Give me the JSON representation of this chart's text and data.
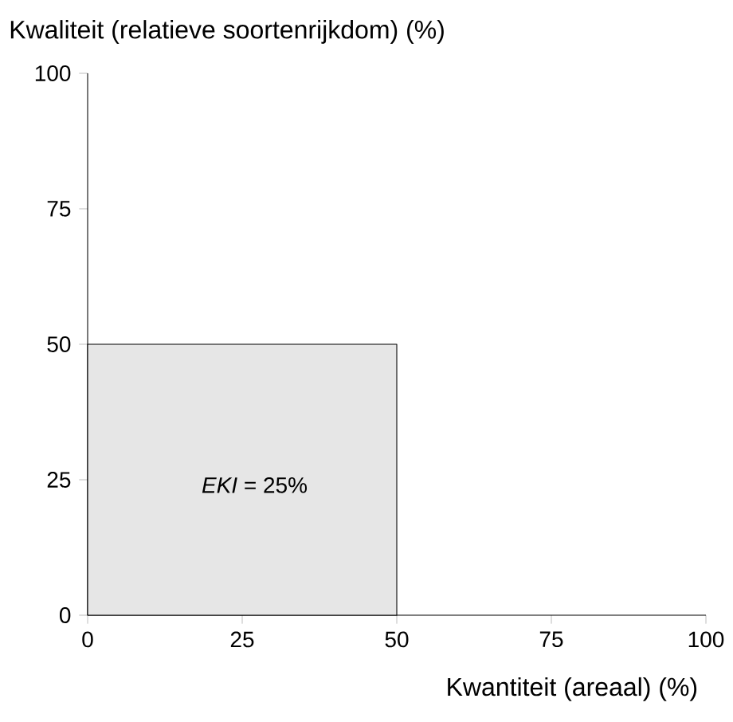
{
  "chart_data": {
    "type": "area",
    "xlabel": "Kwantiteit (areaal) (%)",
    "ylabel": "Kwaliteit (relatieve soortenrijkdom) (%)",
    "x": [
      0,
      50
    ],
    "values": [
      50,
      50
    ],
    "color": "#e6e6e6",
    "xlim": [
      0,
      100
    ],
    "ylim": [
      0,
      100
    ],
    "xticks": [
      0,
      25,
      50,
      75,
      100
    ],
    "yticks": [
      0,
      25,
      50,
      75,
      100
    ],
    "annotations": [
      "*EKI* = 25%"
    ]
  }
}
